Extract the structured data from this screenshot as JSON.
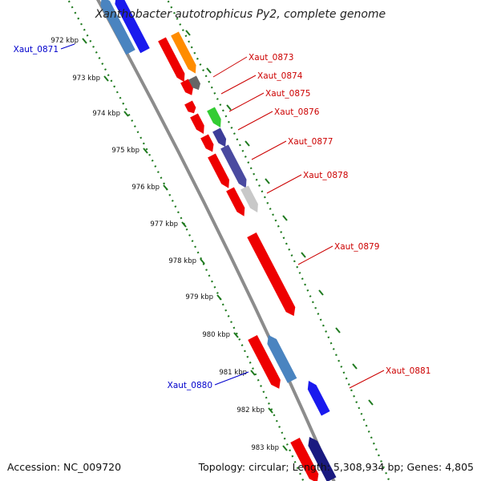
{
  "title": "Xanthobacter autotrophicus Py2, complete genome",
  "footer": {
    "accession": "Accession: NC_009720",
    "topology": "Topology: circular; Length: 5,308,934 bp; Genes: 4,805"
  },
  "colors": {
    "backbone": "#8c8c8c",
    "ruler": "#1f7a1f",
    "label_forward": "#cc0000",
    "label_reverse": "#0000cc"
  },
  "kbp_labels": [
    "972 kbp",
    "973 kbp",
    "974 kbp",
    "975 kbp",
    "976 kbp",
    "977 kbp",
    "978 kbp",
    "979 kbp",
    "980 kbp",
    "981 kbp",
    "982 kbp",
    "983 kbp"
  ],
  "genes": [
    {
      "label": "",
      "color": "#4a84c0",
      "strand": "reverse",
      "track": 1
    },
    {
      "label": "",
      "color": "#1a1aee",
      "strand": "reverse",
      "track": 2
    },
    {
      "label": "",
      "color": "#ee0000",
      "strand": "forward",
      "track": 1
    },
    {
      "label": "",
      "color": "#ff8c00",
      "strand": "forward",
      "track": 2
    },
    {
      "label": "",
      "color": "#ee0000",
      "strand": "forward",
      "track": 1
    },
    {
      "label": "",
      "color": "#666666",
      "strand": "forward",
      "track": 2
    },
    {
      "label": "",
      "color": "#ee0000",
      "strand": "forward",
      "track": 1
    },
    {
      "label": "",
      "color": "#ee0000",
      "strand": "forward",
      "track": 1
    },
    {
      "label": "",
      "color": "#33cc33",
      "strand": "forward",
      "track": 2
    },
    {
      "label": "",
      "color": "#ee0000",
      "strand": "forward",
      "track": 1
    },
    {
      "label": "",
      "color": "#3d3d99",
      "strand": "forward",
      "track": 2
    },
    {
      "label": "",
      "color": "#ee0000",
      "strand": "forward",
      "track": 1
    },
    {
      "label": "",
      "color": "#4a4aa0",
      "strand": "forward",
      "track": 2
    },
    {
      "label": "",
      "color": "#ee0000",
      "strand": "forward",
      "track": 1
    },
    {
      "label": "",
      "color": "#c8c8c8",
      "strand": "forward",
      "track": 2
    },
    {
      "label": "",
      "color": "#ee0000",
      "strand": "forward",
      "track": 1
    },
    {
      "label": "",
      "color": "#4a84c0",
      "strand": "reverse",
      "track": 1
    },
    {
      "label": "",
      "color": "#1a1aee",
      "strand": "reverse",
      "track": 2
    },
    {
      "label": "",
      "color": "#ee0000",
      "strand": "forward",
      "track": 2
    },
    {
      "label": "",
      "color": "#1a1a80",
      "strand": "reverse",
      "track": 1
    },
    {
      "label": "",
      "color": "#1a1aee",
      "strand": "reverse",
      "track": 2
    }
  ],
  "gene_labels": [
    {
      "text": "Xaut_0871",
      "strand": "reverse"
    },
    {
      "text": "Xaut_0873",
      "strand": "forward"
    },
    {
      "text": "Xaut_0874",
      "strand": "forward"
    },
    {
      "text": "Xaut_0875",
      "strand": "forward"
    },
    {
      "text": "Xaut_0876",
      "strand": "forward"
    },
    {
      "text": "Xaut_0877",
      "strand": "forward"
    },
    {
      "text": "Xaut_0878",
      "strand": "forward"
    },
    {
      "text": "Xaut_0879",
      "strand": "forward"
    },
    {
      "text": "Xaut_0880",
      "strand": "reverse"
    },
    {
      "text": "Xaut_0881",
      "strand": "forward"
    }
  ]
}
